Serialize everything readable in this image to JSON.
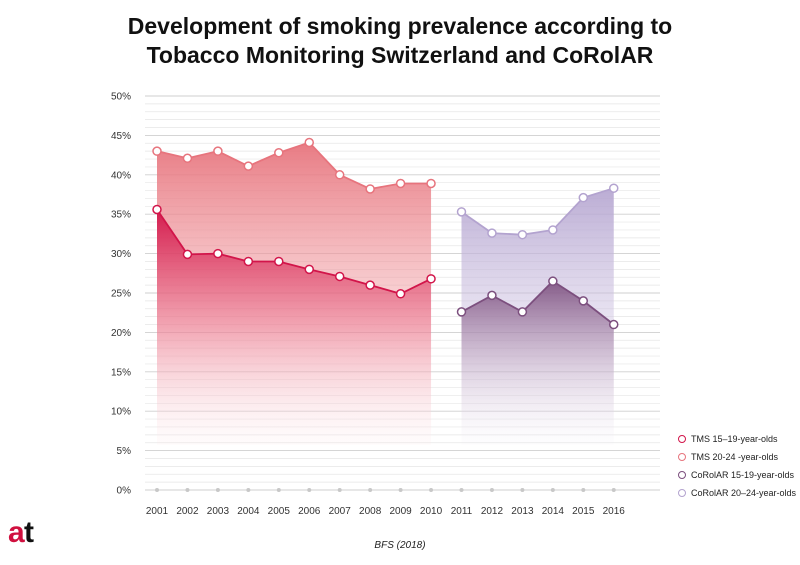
{
  "chart_data": {
    "type": "area",
    "title": [
      "Development of smoking prevalence according to",
      "Tobacco Monitoring Switzerland and CoRolAR"
    ],
    "x": [
      "2001",
      "2002",
      "2003",
      "2004",
      "2005",
      "2006",
      "2007",
      "2008",
      "2009",
      "2010",
      "2011",
      "2012",
      "2013",
      "2014",
      "2015",
      "2016"
    ],
    "y_ticks": [
      "0%",
      "5%",
      "10%",
      "15%",
      "20%",
      "25%",
      "30%",
      "35%",
      "40%",
      "45%",
      "50%"
    ],
    "ylim": [
      0,
      50
    ],
    "series": [
      {
        "name": "TMS 20-24 -year-olds",
        "color": "#e7747d",
        "x": [
          "2001",
          "2002",
          "2003",
          "2004",
          "2005",
          "2006",
          "2007",
          "2008",
          "2009",
          "2010"
        ],
        "values": [
          43.0,
          42.1,
          43.0,
          41.1,
          42.8,
          44.1,
          40.0,
          38.2,
          38.9,
          38.9
        ]
      },
      {
        "name": "TMS 15–19-year-olds",
        "color": "#d2154a",
        "x": [
          "2001",
          "2002",
          "2003",
          "2004",
          "2005",
          "2006",
          "2007",
          "2008",
          "2009",
          "2010"
        ],
        "values": [
          35.6,
          29.9,
          30.0,
          29.0,
          29.0,
          28.0,
          27.1,
          26.0,
          24.9,
          26.8
        ]
      },
      {
        "name": "CoRolAR 20–24-year-olds",
        "color": "#b3a3cf",
        "x": [
          "2011",
          "2012",
          "2013",
          "2014",
          "2015",
          "2016"
        ],
        "values": [
          35.3,
          32.6,
          32.4,
          33.0,
          37.1,
          38.3
        ]
      },
      {
        "name": "CoRolAR 15-19-year-olds",
        "color": "#7c4f7e",
        "x": [
          "2011",
          "2012",
          "2013",
          "2014",
          "2015",
          "2016"
        ],
        "values": [
          22.6,
          24.7,
          22.6,
          26.5,
          24.0,
          21.0
        ]
      }
    ],
    "legend": [
      "TMS 15–19-year-olds",
      "TMS 20-24 -year-olds",
      "CoRolAR 15-19-year-olds",
      "CoRolAR 20–24-year-olds"
    ],
    "legend_colors": [
      "#d2154a",
      "#e7747d",
      "#7c4f7e",
      "#b3a3cf"
    ],
    "source": "BFS (2018)"
  },
  "logo_text": "at"
}
